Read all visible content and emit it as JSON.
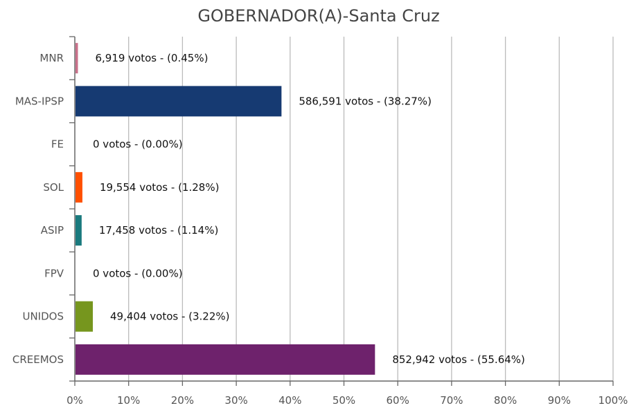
{
  "chart_data": {
    "type": "bar",
    "orientation": "horizontal",
    "title": "GOBERNADOR(A)-Santa Cruz",
    "categories": [
      "MNR",
      "MAS-IPSP",
      "FE",
      "SOL",
      "ASIP",
      "FPV",
      "UNIDOS",
      "CREEMOS"
    ],
    "values": [
      0.45,
      38.27,
      0.0,
      1.28,
      1.14,
      0.0,
      3.22,
      55.64
    ],
    "votes": [
      6919,
      586591,
      0,
      19554,
      17458,
      0,
      49404,
      852942
    ],
    "data_labels": [
      "6,919 votos - (0.45%)",
      "586,591 votos - (38.27%)",
      "0 votos - (0.00%)",
      "19,554 votos - (1.28%)",
      "17,458 votos - (1.14%)",
      "0 votos - (0.00%)",
      "49,404 votos - (3.22%)",
      "852,942 votos - (55.64%)"
    ],
    "colors": [
      "#c9708a",
      "#163a72",
      "#888888",
      "#ff5000",
      "#1a7a7e",
      "#888888",
      "#76961e",
      "#6e226c"
    ],
    "xlim": [
      0,
      100
    ],
    "xticks": [
      "0%",
      "10%",
      "20%",
      "30%",
      "40%",
      "50%",
      "60%",
      "70%",
      "80%",
      "90%",
      "100%"
    ],
    "grid": true,
    "legend": "none"
  }
}
